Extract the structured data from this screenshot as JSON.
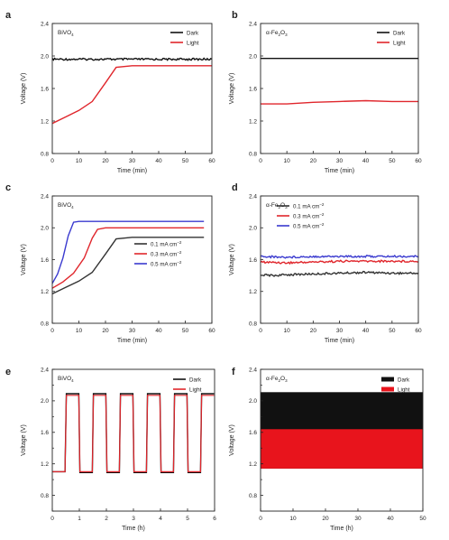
{
  "chart_data": [
    {
      "panel": "a",
      "type": "line",
      "sample": "BiVO",
      "sample_sub": "4",
      "xlabel": "Time (min)",
      "ylabel": "Voltage (V)",
      "xlim": [
        0,
        60
      ],
      "ylim": [
        0.8,
        2.4
      ],
      "xticks": [
        0,
        10,
        20,
        30,
        40,
        50,
        60
      ],
      "yticks": [
        0.8,
        1.2,
        1.6,
        2.0,
        2.4
      ],
      "legend_position": "top-right",
      "series": [
        {
          "name": "Dark",
          "color": "#111111",
          "style": "noisy",
          "x": [
            0,
            60
          ],
          "y": [
            1.96,
            1.96
          ]
        },
        {
          "name": "Light",
          "color": "#e0262c",
          "x": [
            0,
            5,
            10,
            15,
            20,
            24,
            30,
            40,
            50,
            60
          ],
          "y": [
            1.17,
            1.25,
            1.33,
            1.44,
            1.67,
            1.86,
            1.88,
            1.88,
            1.88,
            1.88
          ]
        }
      ]
    },
    {
      "panel": "b",
      "type": "line",
      "sample": "α-Fe",
      "sample_sub": "2",
      "sample_tail": "O",
      "sample_sub2": "3",
      "xlabel": "Time (min)",
      "ylabel": "Voltage (V)",
      "xlim": [
        0,
        60
      ],
      "ylim": [
        0.8,
        2.4
      ],
      "xticks": [
        0,
        10,
        20,
        30,
        40,
        50,
        60
      ],
      "yticks": [
        0.8,
        1.2,
        1.6,
        2.0,
        2.4
      ],
      "legend_position": "top-right",
      "series": [
        {
          "name": "Dark",
          "color": "#111111",
          "x": [
            0,
            60
          ],
          "y": [
            1.97,
            1.97
          ]
        },
        {
          "name": "Light",
          "color": "#e0262c",
          "x": [
            0,
            5,
            10,
            20,
            30,
            40,
            50,
            60
          ],
          "y": [
            1.41,
            1.41,
            1.41,
            1.43,
            1.44,
            1.45,
            1.44,
            1.44
          ]
        }
      ]
    },
    {
      "panel": "c",
      "type": "line",
      "sample": "BiVO",
      "sample_sub": "4",
      "xlabel": "Time (min)",
      "ylabel": "Voltage (V)",
      "xlim": [
        0,
        60
      ],
      "ylim": [
        0.8,
        2.4
      ],
      "xticks": [
        0,
        10,
        20,
        30,
        40,
        50,
        60
      ],
      "yticks": [
        0.8,
        1.2,
        1.6,
        2.0,
        2.4
      ],
      "legend_position": "center-right",
      "series": [
        {
          "name": "0.1 mA cm",
          "unit_sup": "−2",
          "color": "#333333",
          "x": [
            0,
            5,
            10,
            15,
            20,
            24,
            30,
            40,
            50,
            57
          ],
          "y": [
            1.17,
            1.25,
            1.33,
            1.44,
            1.67,
            1.86,
            1.88,
            1.88,
            1.88,
            1.88
          ]
        },
        {
          "name": "0.3 mA cm",
          "unit_sup": "−2",
          "color": "#e0262c",
          "x": [
            0,
            4,
            8,
            12,
            15,
            17,
            20,
            30,
            40,
            50,
            57
          ],
          "y": [
            1.24,
            1.32,
            1.43,
            1.62,
            1.87,
            1.98,
            2.0,
            2.0,
            2.0,
            2.0,
            2.0
          ]
        },
        {
          "name": "0.5 mA cm",
          "unit_sup": "−2",
          "color": "#3a3acf",
          "x": [
            0,
            2,
            4,
            6,
            8,
            10,
            20,
            30,
            40,
            50,
            57
          ],
          "y": [
            1.3,
            1.42,
            1.62,
            1.9,
            2.07,
            2.08,
            2.08,
            2.08,
            2.08,
            2.08,
            2.08
          ]
        }
      ]
    },
    {
      "panel": "d",
      "type": "line",
      "sample": "α-Fe",
      "sample_sub": "2",
      "sample_tail": "O",
      "sample_sub2": "3",
      "xlabel": "Time (min)",
      "ylabel": "Voltage (V)",
      "xlim": [
        0,
        60
      ],
      "ylim": [
        0.8,
        2.4
      ],
      "xticks": [
        0,
        10,
        20,
        30,
        40,
        50,
        60
      ],
      "yticks": [
        0.8,
        1.2,
        1.6,
        2.0,
        2.4
      ],
      "legend_position": "top-left",
      "series": [
        {
          "name": "0.1 mA cm",
          "unit_sup": "−2",
          "color": "#333333",
          "style": "noisy",
          "x": [
            0,
            5,
            10,
            20,
            30,
            40,
            50,
            60
          ],
          "y": [
            1.41,
            1.4,
            1.41,
            1.42,
            1.43,
            1.44,
            1.43,
            1.43
          ]
        },
        {
          "name": "0.3 mA cm",
          "unit_sup": "−2",
          "color": "#e0262c",
          "style": "noisy",
          "x": [
            0,
            10,
            20,
            30,
            40,
            50,
            60
          ],
          "y": [
            1.57,
            1.56,
            1.57,
            1.58,
            1.58,
            1.58,
            1.58
          ]
        },
        {
          "name": "0.5 mA cm",
          "unit_sup": "−2",
          "color": "#3a3acf",
          "style": "noisy",
          "x": [
            0,
            10,
            20,
            30,
            40,
            50,
            60
          ],
          "y": [
            1.64,
            1.63,
            1.64,
            1.64,
            1.64,
            1.64,
            1.64
          ]
        }
      ]
    },
    {
      "panel": "e",
      "type": "line",
      "sample": "BiVO",
      "sample_sub": "4",
      "xlabel": "Time (h)",
      "ylabel": "Voltage (V)",
      "xlim": [
        0,
        6
      ],
      "ylim": [
        0.6,
        2.4
      ],
      "xticks": [
        0,
        1,
        2,
        3,
        4,
        5,
        6
      ],
      "yticks": [
        0.8,
        1.2,
        1.6,
        2.0,
        2.4
      ],
      "minor_yticks": [
        0.6,
        1.0,
        1.4,
        1.8,
        2.2
      ],
      "legend_position": "top-right",
      "cycling": {
        "period_h": 0.5,
        "start_h": 0.5,
        "high_v": 2.07,
        "low_v": 1.1,
        "first_v": 1.1
      },
      "series": [
        {
          "name": "Dark",
          "color": "#111111"
        },
        {
          "name": "Light",
          "color": "#e0262c"
        }
      ]
    },
    {
      "panel": "f",
      "type": "area",
      "sample": "α-Fe",
      "sample_sub": "2",
      "sample_tail": "O",
      "sample_sub2": "3",
      "xlabel": "Time (h)",
      "ylabel": "Voltage (V)",
      "xlim": [
        0,
        50
      ],
      "ylim": [
        0.6,
        2.4
      ],
      "xticks": [
        0,
        10,
        20,
        30,
        40,
        50
      ],
      "yticks": [
        0.8,
        1.2,
        1.6,
        2.0,
        2.4
      ],
      "minor_yticks": [
        0.6,
        1.0,
        1.4,
        1.8,
        2.2
      ],
      "legend_position": "top-right",
      "series": [
        {
          "name": "Dark",
          "color": "#111111",
          "band": [
            1.14,
            2.11
          ]
        },
        {
          "name": "Light",
          "color": "#e8141c",
          "band": [
            1.14,
            1.64
          ]
        }
      ]
    }
  ]
}
